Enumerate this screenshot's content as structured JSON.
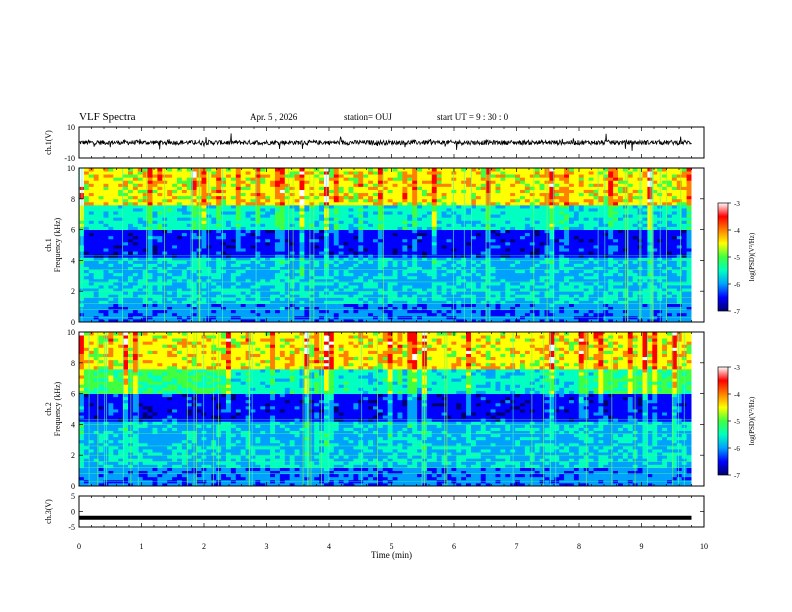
{
  "header": {
    "title": "VLF Spectra",
    "date": "Apr. 5 , 2026",
    "station": "station= OUJ",
    "start_ut": "start  UT  =   9 : 30 : 0"
  },
  "chart_data": [
    {
      "type": "line",
      "panel": "ch1-waveform",
      "ylabel": "ch.1(V)",
      "ylim": [
        -10,
        10
      ],
      "y_ticks": [
        "10",
        "-10"
      ],
      "x_range": [
        0,
        10
      ],
      "baseline": 0,
      "noise_amplitude": 1.5,
      "color": "#000000"
    },
    {
      "type": "heatmap",
      "panel": "ch1-spectrogram",
      "ylabel_1": "ch.1",
      "ylabel_2": "Frequency (kHz)",
      "ylim": [
        0,
        10
      ],
      "y_ticks": [
        "0",
        "2",
        "4",
        "6",
        "8",
        "10"
      ],
      "x_range": [
        0,
        10
      ],
      "colorbar": {
        "label": "log(PSD)(V²/Hz)",
        "range": [
          -7,
          -3
        ],
        "ticks": [
          "-3",
          "-4",
          "-5",
          "-6",
          "-7"
        ],
        "colors": [
          "#000070",
          "#0000ff",
          "#00a0ff",
          "#00ffc0",
          "#40ff40",
          "#ffff00",
          "#ff8000",
          "#ff0000",
          "#ffffff"
        ]
      }
    },
    {
      "type": "heatmap",
      "panel": "ch2-spectrogram",
      "ylabel_1": "ch.2",
      "ylabel_2": "Frequency (kHz)",
      "ylim": [
        0,
        10
      ],
      "y_ticks": [
        "0",
        "2",
        "4",
        "6",
        "8",
        "10"
      ],
      "x_range": [
        0,
        10
      ],
      "colorbar": {
        "label": "log(PSD)(V²/Hz)",
        "range": [
          -7,
          -3
        ],
        "ticks": [
          "-3",
          "-4",
          "-5",
          "-6",
          "-7"
        ],
        "colors": [
          "#000070",
          "#0000ff",
          "#00a0ff",
          "#00ffc0",
          "#40ff40",
          "#ffff00",
          "#ff8000",
          "#ff0000",
          "#ffffff"
        ]
      }
    },
    {
      "type": "line",
      "panel": "ch3-waveform",
      "ylabel": "ch.3(V)",
      "ylim": [
        -5,
        5
      ],
      "y_ticks": [
        "5",
        "0",
        "-5"
      ],
      "x_range": [
        0,
        10
      ],
      "baseline": -2,
      "color": "#000000"
    }
  ],
  "x_axis": {
    "label": "Time (min)",
    "ticks": [
      "0",
      "1",
      "2",
      "3",
      "4",
      "5",
      "6",
      "7",
      "8",
      "9",
      "10"
    ]
  }
}
